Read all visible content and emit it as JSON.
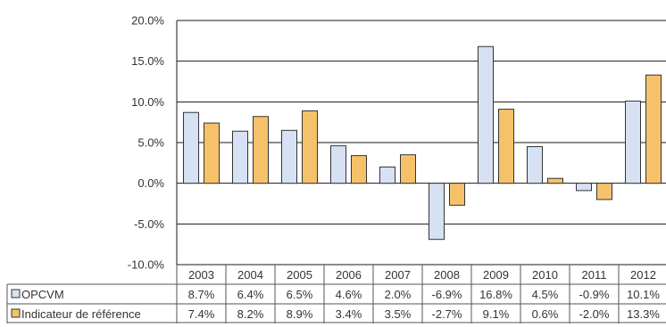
{
  "chart_data": {
    "type": "bar",
    "categories": [
      "2003",
      "2004",
      "2005",
      "2006",
      "2007",
      "2008",
      "2009",
      "2010",
      "2011",
      "2012"
    ],
    "series": [
      {
        "name": "OPCVM",
        "color": "#d6e2f3",
        "values": [
          8.7,
          6.4,
          6.5,
          4.6,
          2.0,
          -6.9,
          16.8,
          4.5,
          -0.9,
          10.1
        ],
        "labels": [
          "8.7%",
          "6.4%",
          "6.5%",
          "4.6%",
          "2.0%",
          "-6.9%",
          "16.8%",
          "4.5%",
          "-0.9%",
          "10.1%"
        ]
      },
      {
        "name": "Indicateur de référence",
        "color": "#f5c26a",
        "values": [
          7.4,
          8.2,
          8.9,
          3.4,
          3.5,
          -2.7,
          9.1,
          0.6,
          -2.0,
          13.3
        ],
        "labels": [
          "7.4%",
          "8.2%",
          "8.9%",
          "3.4%",
          "3.5%",
          "-2.7%",
          "9.1%",
          "0.6%",
          "-2.0%",
          "13.3%"
        ]
      }
    ],
    "ylim": [
      -10,
      20
    ],
    "yticks": [
      20,
      15,
      10,
      5,
      0,
      -5,
      -10
    ],
    "ytick_labels": [
      "20.0%",
      "15.0%",
      "10.0%",
      "5.0%",
      "0.0%",
      "-5.0%",
      "-10.0%"
    ],
    "grid": true,
    "legend": "bottom-left data table"
  }
}
